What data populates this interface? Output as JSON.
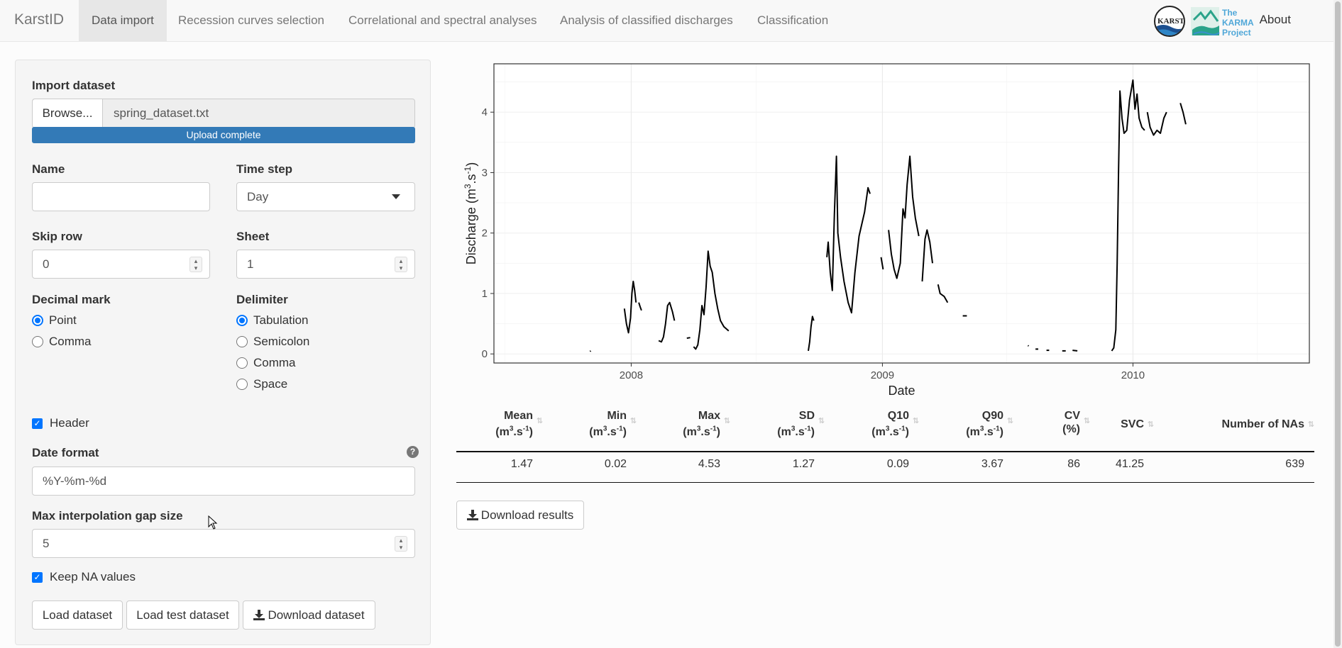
{
  "brand": "KarstID",
  "nav": {
    "tabs": [
      "Data import",
      "Recession curves selection",
      "Correlational and spectral analyses",
      "Analysis of classified discharges",
      "Classification"
    ],
    "about": "About",
    "karst_logo_text": "KARST",
    "karma_logo_lines": [
      "The",
      "KARMA",
      "Project"
    ]
  },
  "import": {
    "title": "Import dataset",
    "browse_label": "Browse...",
    "file_name": "spring_dataset.txt",
    "progress_label": "Upload complete",
    "progress": 1.0
  },
  "fields": {
    "name_label": "Name",
    "name_value": "",
    "timestep_label": "Time step",
    "timestep_value": "Day",
    "skiprow_label": "Skip row",
    "skiprow_value": "0",
    "sheet_label": "Sheet",
    "sheet_value": "1",
    "decimal_label": "Decimal mark",
    "decimal_options": [
      "Point",
      "Comma"
    ],
    "delimiter_label": "Delimiter",
    "delimiter_options": [
      "Tabulation",
      "Semicolon",
      "Comma",
      "Space"
    ],
    "header_label": "Header",
    "dateformat_label": "Date format",
    "dateformat_value": "%Y-%m-%d",
    "maxgap_label": "Max interpolation gap size",
    "maxgap_value": "5",
    "keepna_label": "Keep NA values"
  },
  "buttons": {
    "load": "Load dataset",
    "load_test": "Load test dataset",
    "download_dataset": "Download dataset",
    "download_results": "Download results"
  },
  "chart_data": {
    "type": "line",
    "xlabel": "Date",
    "ylabel": "Discharge (m3.s-1)",
    "x_ticks": [
      "2008",
      "2009",
      "2010"
    ],
    "y_ticks": [
      0,
      1,
      2,
      3,
      4
    ],
    "xlim": [
      "2007-06-15",
      "2010-09-15"
    ],
    "ylim": [
      -0.15,
      4.8
    ],
    "grid": true,
    "series": [
      {
        "segments": [
          [
            [
              "2007-11-02",
              0.04
            ],
            [
              "2007-11-03",
              0.05
            ]
          ],
          [
            [
              "2007-12-22",
              0.75
            ],
            [
              "2007-12-25",
              0.5
            ],
            [
              "2007-12-28",
              0.35
            ],
            [
              "2007-12-31",
              0.6
            ],
            [
              "2008-01-02",
              1.0
            ],
            [
              "2008-01-04",
              1.2
            ],
            [
              "2008-01-06",
              1.05
            ],
            [
              "2008-01-08",
              0.85
            ]
          ],
          [
            [
              "2008-01-12",
              0.85
            ],
            [
              "2008-01-14",
              0.78
            ],
            [
              "2008-01-16",
              0.72
            ]
          ],
          [
            [
              "2008-02-10",
              0.22
            ],
            [
              "2008-02-14",
              0.2
            ],
            [
              "2008-02-17",
              0.28
            ],
            [
              "2008-02-20",
              0.5
            ],
            [
              "2008-02-23",
              0.8
            ],
            [
              "2008-02-26",
              0.85
            ],
            [
              "2008-03-01",
              0.7
            ],
            [
              "2008-03-04",
              0.55
            ]
          ],
          [
            [
              "2008-03-22",
              0.26
            ],
            [
              "2008-03-27",
              0.27
            ]
          ],
          [
            [
              "2008-04-01",
              0.12
            ],
            [
              "2008-04-04",
              0.08
            ],
            [
              "2008-04-07",
              0.15
            ],
            [
              "2008-04-10",
              0.4
            ],
            [
              "2008-04-13",
              0.8
            ],
            [
              "2008-04-16",
              0.65
            ],
            [
              "2008-04-19",
              1.1
            ],
            [
              "2008-04-22",
              1.7
            ],
            [
              "2008-04-25",
              1.45
            ],
            [
              "2008-04-28",
              1.35
            ],
            [
              "2008-05-02",
              1.0
            ],
            [
              "2008-05-06",
              0.75
            ],
            [
              "2008-05-10",
              0.55
            ],
            [
              "2008-05-15",
              0.45
            ],
            [
              "2008-05-22",
              0.38
            ]
          ],
          [
            [
              "2008-09-15",
              0.05
            ],
            [
              "2008-09-17",
              0.2
            ],
            [
              "2008-09-19",
              0.45
            ],
            [
              "2008-09-21",
              0.62
            ],
            [
              "2008-09-23",
              0.55
            ]
          ],
          [
            [
              "2008-10-12",
              1.6
            ],
            [
              "2008-10-14",
              1.85
            ],
            [
              "2008-10-17",
              1.35
            ],
            [
              "2008-10-20",
              1.05
            ],
            [
              "2008-10-23",
              2.3
            ],
            [
              "2008-10-26",
              3.27
            ],
            [
              "2008-10-28",
              2.0
            ],
            [
              "2008-11-01",
              1.6
            ],
            [
              "2008-11-06",
              1.2
            ],
            [
              "2008-11-12",
              0.85
            ],
            [
              "2008-11-17",
              0.68
            ],
            [
              "2008-11-22",
              1.35
            ],
            [
              "2008-11-28",
              1.95
            ],
            [
              "2008-12-06",
              2.35
            ],
            [
              "2008-12-11",
              2.75
            ],
            [
              "2008-12-14",
              2.65
            ]
          ],
          [
            [
              "2008-12-30",
              1.6
            ],
            [
              "2009-01-02",
              1.4
            ]
          ],
          [
            [
              "2009-01-10",
              2.05
            ],
            [
              "2009-01-14",
              1.65
            ],
            [
              "2009-01-18",
              1.4
            ],
            [
              "2009-01-22",
              1.25
            ],
            [
              "2009-01-27",
              1.5
            ],
            [
              "2009-01-31",
              2.4
            ],
            [
              "2009-02-03",
              2.25
            ],
            [
              "2009-02-06",
              2.8
            ],
            [
              "2009-02-10",
              3.27
            ],
            [
              "2009-02-14",
              2.6
            ],
            [
              "2009-02-18",
              2.25
            ],
            [
              "2009-02-23",
              1.95
            ]
          ],
          [
            [
              "2009-02-28",
              1.2
            ],
            [
              "2009-03-04",
              1.9
            ],
            [
              "2009-03-07",
              2.05
            ],
            [
              "2009-03-11",
              1.85
            ],
            [
              "2009-03-15",
              1.5
            ]
          ],
          [
            [
              "2009-03-23",
              1.15
            ],
            [
              "2009-03-26",
              1.0
            ],
            [
              "2009-04-01",
              0.95
            ],
            [
              "2009-04-06",
              0.85
            ]
          ],
          [
            [
              "2009-04-28",
              0.63
            ],
            [
              "2009-05-04",
              0.63
            ]
          ],
          [
            [
              "2009-08-01",
              0.14
            ],
            [
              "2009-08-02",
              0.13
            ]
          ],
          [
            [
              "2009-08-12",
              0.08
            ],
            [
              "2009-08-16",
              0.08
            ]
          ],
          [
            [
              "2009-08-28",
              0.06
            ],
            [
              "2009-09-01",
              0.06
            ]
          ],
          [
            [
              "2009-09-20",
              0.05
            ],
            [
              "2009-09-25",
              0.05
            ]
          ],
          [
            [
              "2009-10-05",
              0.06
            ],
            [
              "2009-10-12",
              0.05
            ]
          ],
          [
            [
              "2009-12-01",
              0.05
            ],
            [
              "2009-12-04",
              0.1
            ],
            [
              "2009-12-07",
              0.4
            ],
            [
              "2009-12-09",
              1.5
            ],
            [
              "2009-12-11",
              3.0
            ],
            [
              "2009-12-13",
              4.35
            ],
            [
              "2009-12-16",
              3.9
            ],
            [
              "2009-12-19",
              3.65
            ],
            [
              "2009-12-23",
              3.7
            ],
            [
              "2009-12-27",
              4.2
            ],
            [
              "2010-01-01",
              4.53
            ],
            [
              "2010-01-04",
              4.05
            ],
            [
              "2010-01-07",
              4.3
            ],
            [
              "2010-01-10",
              3.9
            ],
            [
              "2010-01-14",
              3.75
            ],
            [
              "2010-01-18",
              3.7
            ]
          ],
          [
            [
              "2010-01-22",
              4.0
            ],
            [
              "2010-01-26",
              3.75
            ],
            [
              "2010-01-31",
              3.62
            ],
            [
              "2010-02-05",
              3.7
            ],
            [
              "2010-02-10",
              3.65
            ],
            [
              "2010-02-15",
              3.9
            ],
            [
              "2010-02-19",
              4.0
            ]
          ],
          [
            [
              "2010-03-11",
              4.15
            ],
            [
              "2010-03-15",
              4.0
            ],
            [
              "2010-03-19",
              3.8
            ]
          ]
        ]
      }
    ]
  },
  "stats": {
    "headers": [
      {
        "name": "Mean",
        "unit": "(m3.s-1)"
      },
      {
        "name": "Min",
        "unit": "(m3.s-1)"
      },
      {
        "name": "Max",
        "unit": "(m3.s-1)"
      },
      {
        "name": "SD",
        "unit": "(m3.s-1)"
      },
      {
        "name": "Q10",
        "unit": "(m3.s-1)"
      },
      {
        "name": "Q90",
        "unit": "(m3.s-1)"
      },
      {
        "name": "CV",
        "unit": "(%)"
      },
      {
        "name": "SVC",
        "unit": ""
      },
      {
        "name": "Number of NAs",
        "unit": ""
      }
    ],
    "row": [
      "1.47",
      "0.02",
      "4.53",
      "1.27",
      "0.09",
      "3.67",
      "86",
      "41.25",
      "639"
    ]
  }
}
